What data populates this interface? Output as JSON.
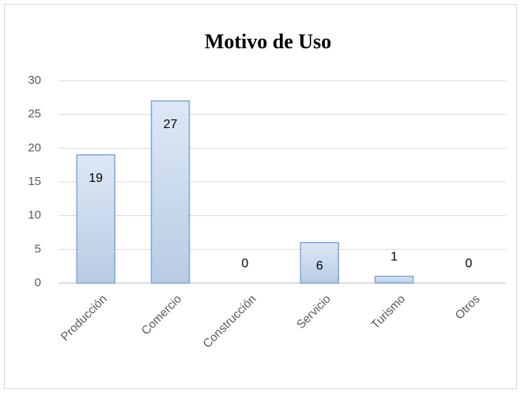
{
  "chart_data": {
    "type": "bar",
    "title": "Motivo de Uso",
    "categories": [
      "Producción",
      "Comercio",
      "Construcción",
      "Servicio",
      "Turismo",
      "Otros"
    ],
    "values": [
      19,
      27,
      0,
      6,
      1,
      0
    ],
    "color": "#b8cce4",
    "ylim": [
      0,
      30
    ],
    "yticks": [
      0,
      5,
      10,
      15,
      20,
      25,
      30
    ],
    "grid": true
  }
}
